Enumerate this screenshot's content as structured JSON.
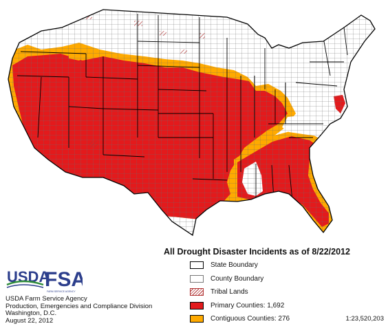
{
  "title": "All Drought Disaster Incidents as of 8/22/2012",
  "legend": [
    {
      "label": "State Boundary",
      "swatch": "state"
    },
    {
      "label": "County Boundary",
      "swatch": "county"
    },
    {
      "label": "Tribal  Lands",
      "swatch": "tribal"
    },
    {
      "label": "Primary Counties: 1,692",
      "swatch": "primary"
    },
    {
      "label": "Contiguous Counties: 276",
      "swatch": "contiguous"
    }
  ],
  "agency": {
    "name": "USDA Farm Service Agency",
    "division": "Production, Emergencies and Compliance Division",
    "city": "Washington, D.C.",
    "date": "August 22, 2012"
  },
  "logo": {
    "usda": "USDA",
    "fsa": "FSA",
    "tagline": "FARM SERVICE AGENCY"
  },
  "scale": "1:23,520,203",
  "colors": {
    "primary": "#e31a1c",
    "contiguous": "#ffaa00",
    "unaffected": "#ffffff",
    "boundary": "#000000"
  }
}
